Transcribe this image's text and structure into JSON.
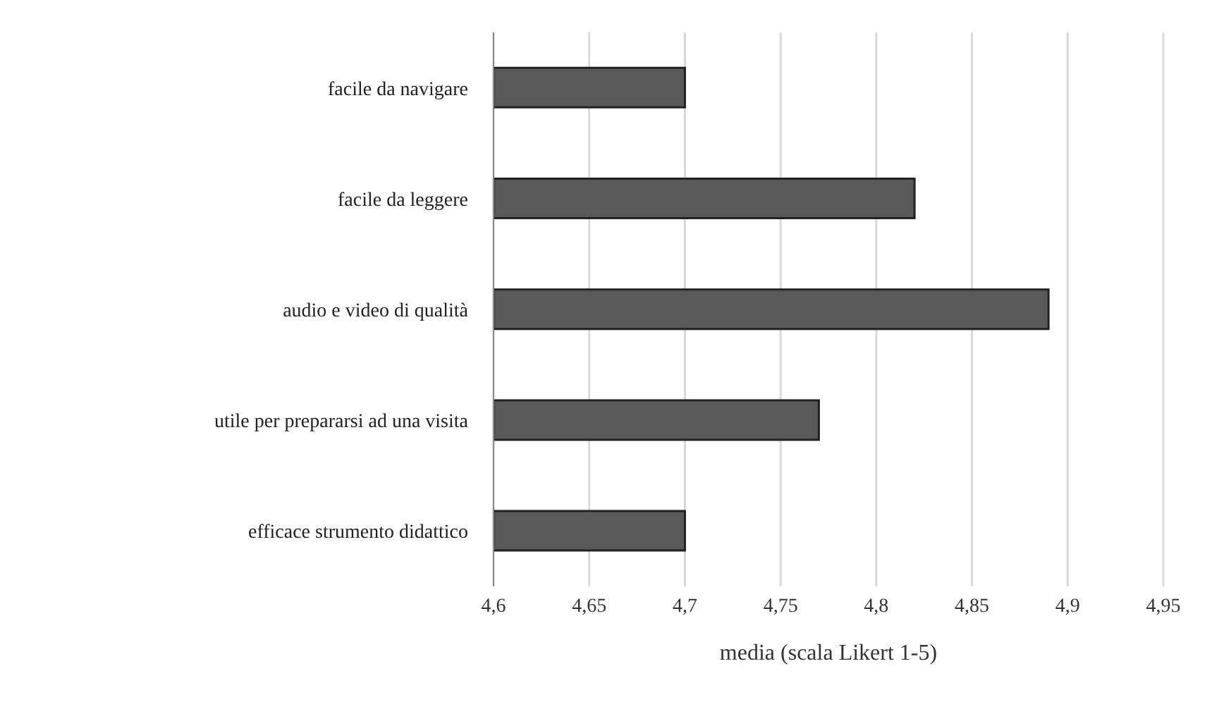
{
  "chart_data": {
    "type": "bar",
    "orientation": "horizontal",
    "xlabel": "media (scala Likert 1-5)",
    "categories": [
      "facile da navigare",
      "facile da leggere",
      "audio e video di qualità",
      "utile per prepararsi ad una visita",
      "efficace strumento didattico"
    ],
    "values": [
      4.7,
      4.82,
      4.89,
      4.77,
      4.7
    ],
    "color": "#595959",
    "xlim": [
      4.6,
      4.95
    ],
    "xticks": [
      {
        "value": 4.6,
        "label": "4,6"
      },
      {
        "value": 4.65,
        "label": "4,65"
      },
      {
        "value": 4.7,
        "label": "4,7"
      },
      {
        "value": 4.75,
        "label": "4,75"
      },
      {
        "value": 4.8,
        "label": "4,8"
      },
      {
        "value": 4.85,
        "label": "4,85"
      },
      {
        "value": 4.9,
        "label": "4,9"
      },
      {
        "value": 4.95,
        "label": "4,95"
      }
    ],
    "grid": "x"
  }
}
